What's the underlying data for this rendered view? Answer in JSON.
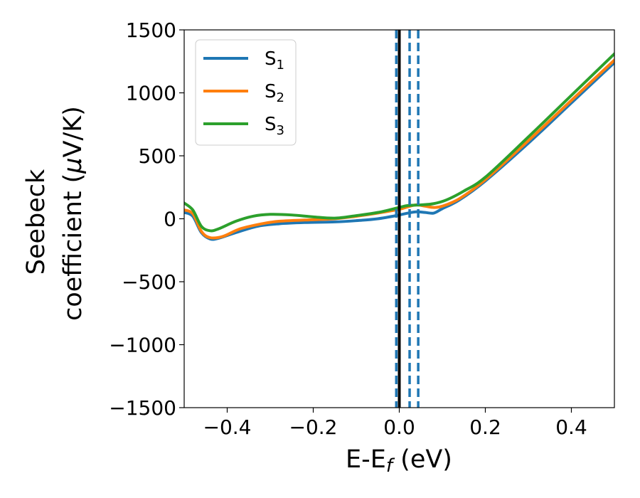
{
  "chart_data": {
    "type": "line",
    "title": "",
    "xlabel": "E-E",
    "xlabel_sub": "f",
    "xlabel_unit": " (eV)",
    "ylabel_line1": "Seebeck",
    "ylabel_line2_pre": "coefficient  (",
    "ylabel_mu": "μ",
    "ylabel_line2_post": "V/K)",
    "xlim": [
      -0.5,
      0.5
    ],
    "ylim": [
      -1500,
      1500
    ],
    "x_ticks": [
      -0.4,
      -0.2,
      0.0,
      0.2,
      0.4
    ],
    "x_tick_labels": [
      "−0.4",
      "−0.2",
      "0.0",
      "0.2",
      "0.4"
    ],
    "y_ticks": [
      -1500,
      -1000,
      -500,
      0,
      500,
      1000,
      1500
    ],
    "y_tick_labels": [
      "−1500",
      "−1000",
      "−500",
      "0",
      "500",
      "1000",
      "1500"
    ],
    "grid": false,
    "legend_position": "upper-left",
    "series": [
      {
        "name": "S",
        "sub": "1",
        "color": "#1f77b4",
        "points": [
          [
            -0.5,
            50
          ],
          [
            -0.48,
            20
          ],
          [
            -0.46,
            -110
          ],
          [
            -0.44,
            -160
          ],
          [
            -0.42,
            -155
          ],
          [
            -0.38,
            -110
          ],
          [
            -0.33,
            -60
          ],
          [
            -0.28,
            -40
          ],
          [
            -0.22,
            -30
          ],
          [
            -0.15,
            -25
          ],
          [
            -0.1,
            -15
          ],
          [
            -0.05,
            0
          ],
          [
            0.0,
            30
          ],
          [
            0.02,
            45
          ],
          [
            0.04,
            55
          ],
          [
            0.06,
            50
          ],
          [
            0.08,
            45
          ],
          [
            0.1,
            80
          ],
          [
            0.14,
            150
          ],
          [
            0.2,
            300
          ],
          [
            0.3,
            600
          ],
          [
            0.4,
            920
          ],
          [
            0.5,
            1240
          ]
        ]
      },
      {
        "name": "S",
        "sub": "2",
        "color": "#ff7f0e",
        "points": [
          [
            -0.5,
            70
          ],
          [
            -0.48,
            40
          ],
          [
            -0.46,
            -100
          ],
          [
            -0.44,
            -150
          ],
          [
            -0.41,
            -140
          ],
          [
            -0.37,
            -80
          ],
          [
            -0.32,
            -40
          ],
          [
            -0.28,
            -20
          ],
          [
            -0.22,
            -10
          ],
          [
            -0.15,
            0
          ],
          [
            -0.1,
            20
          ],
          [
            -0.05,
            45
          ],
          [
            0.0,
            75
          ],
          [
            0.02,
            95
          ],
          [
            0.04,
            110
          ],
          [
            0.06,
            100
          ],
          [
            0.08,
            90
          ],
          [
            0.1,
            100
          ],
          [
            0.14,
            160
          ],
          [
            0.2,
            310
          ],
          [
            0.3,
            620
          ],
          [
            0.4,
            940
          ],
          [
            0.5,
            1260
          ]
        ]
      },
      {
        "name": "S",
        "sub": "3",
        "color": "#2ca02c",
        "points": [
          [
            -0.5,
            125
          ],
          [
            -0.48,
            70
          ],
          [
            -0.46,
            -60
          ],
          [
            -0.44,
            -95
          ],
          [
            -0.42,
            -80
          ],
          [
            -0.38,
            -20
          ],
          [
            -0.34,
            20
          ],
          [
            -0.3,
            35
          ],
          [
            -0.25,
            30
          ],
          [
            -0.2,
            15
          ],
          [
            -0.15,
            5
          ],
          [
            -0.1,
            25
          ],
          [
            -0.05,
            50
          ],
          [
            0.0,
            90
          ],
          [
            0.02,
            105
          ],
          [
            0.05,
            110
          ],
          [
            0.08,
            120
          ],
          [
            0.11,
            150
          ],
          [
            0.15,
            220
          ],
          [
            0.2,
            330
          ],
          [
            0.3,
            650
          ],
          [
            0.4,
            980
          ],
          [
            0.5,
            1310
          ]
        ]
      }
    ],
    "vlines": [
      {
        "x": 0.0,
        "style": "solid",
        "color": "#000000"
      },
      {
        "x": -0.007,
        "style": "dashed",
        "color": "#1f77b4"
      },
      {
        "x": 0.024,
        "style": "dashed",
        "color": "#1f77b4"
      },
      {
        "x": 0.044,
        "style": "dashed",
        "color": "#1f77b4"
      }
    ]
  }
}
